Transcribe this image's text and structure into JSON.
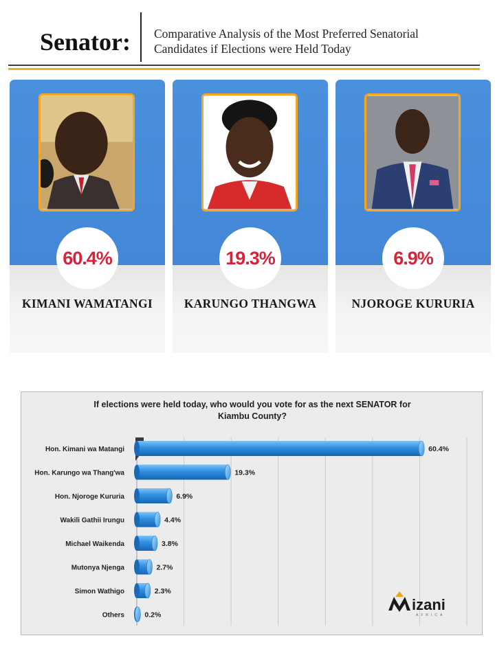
{
  "header": {
    "title": "Senator:",
    "subtitle_line1": "Comparative Analysis of the Most Preferred Senatorial",
    "subtitle_line2": "Candidates if Elections were Held Today"
  },
  "candidates": [
    {
      "name": "KIMANI WAMATANGI",
      "percent": "60.4%"
    },
    {
      "name": "KARUNGO THANGWA",
      "percent": "19.3%"
    },
    {
      "name": "NJOROGE KURURIA",
      "percent": "6.9%"
    }
  ],
  "colors": {
    "card_blue": "#4a8fdc",
    "bar_blue": "#2f8fe0",
    "percent_red": "#d6233a",
    "photo_border": "#f5a623",
    "gold_rule": "#e8b020"
  },
  "logo": {
    "text": "izani",
    "tagline": "AFRICA"
  },
  "chart_data": {
    "type": "bar",
    "orientation": "horizontal",
    "title_line1": "If elections were held today, who would you vote for as the next SENATOR for",
    "title_line2": "Kiambu County?",
    "categories": [
      "Hon. Kimani wa Matangi",
      "Hon. Karungo wa Thang'wa",
      "Hon. Njoroge Kururia",
      "Wakili Gathii Irungu",
      "Michael Waikenda",
      "Mutonya Njenga",
      "Simon Wathigo",
      "Others"
    ],
    "values": [
      60.4,
      19.3,
      6.9,
      4.4,
      3.8,
      2.7,
      2.3,
      0.2
    ],
    "value_labels": [
      "60.4%",
      "19.3%",
      "6.9%",
      "4.4%",
      "3.8%",
      "2.7%",
      "2.3%",
      "0.2%"
    ],
    "xlim": [
      0,
      70
    ],
    "grid": true,
    "legend": "none"
  }
}
